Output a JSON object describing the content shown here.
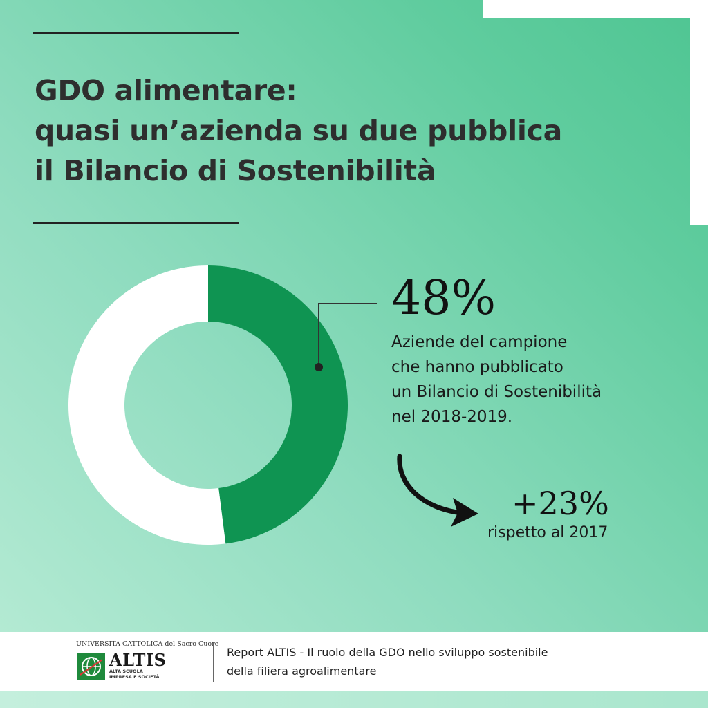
{
  "title_lines": [
    "GDO alimentare:",
    "quasi un’azienda su due pubblica",
    "il Bilancio di Sostenibilità"
  ],
  "chart_data": {
    "type": "pie",
    "style": "donut",
    "slices": [
      {
        "label": "Aziende del campione che hanno pubblicato un Bilancio di Sostenibilità nel 2018-2019",
        "value": 48,
        "color": "#0f9452"
      },
      {
        "label": "",
        "value": 52,
        "color": "#ffffff"
      }
    ]
  },
  "highlight": {
    "value": "48%",
    "description_lines": [
      "Aziende del campione",
      "che hanno pubblicato",
      "un Bilancio di Sostenibilità",
      "nel 2018-2019."
    ]
  },
  "change": {
    "value": "+23%",
    "caption": "rispetto al 2017"
  },
  "footer": {
    "university": "UNIVERSITÀ CATTOLICA del Sacro Cuore",
    "logo_name": "ALTIS",
    "logo_sub_lines": [
      "ALTA SCUOLA",
      "IMPRESA E SOCIETÀ"
    ],
    "report_lines": [
      "Report ALTIS - Il ruolo della GDO nello sviluppo sostenibile",
      "della filiera agroalimentare"
    ]
  },
  "colors": {
    "accent": "#0f9452",
    "background_light": "#b9ecd6",
    "background_dark": "#4ec592",
    "text": "#2e2e2e"
  }
}
